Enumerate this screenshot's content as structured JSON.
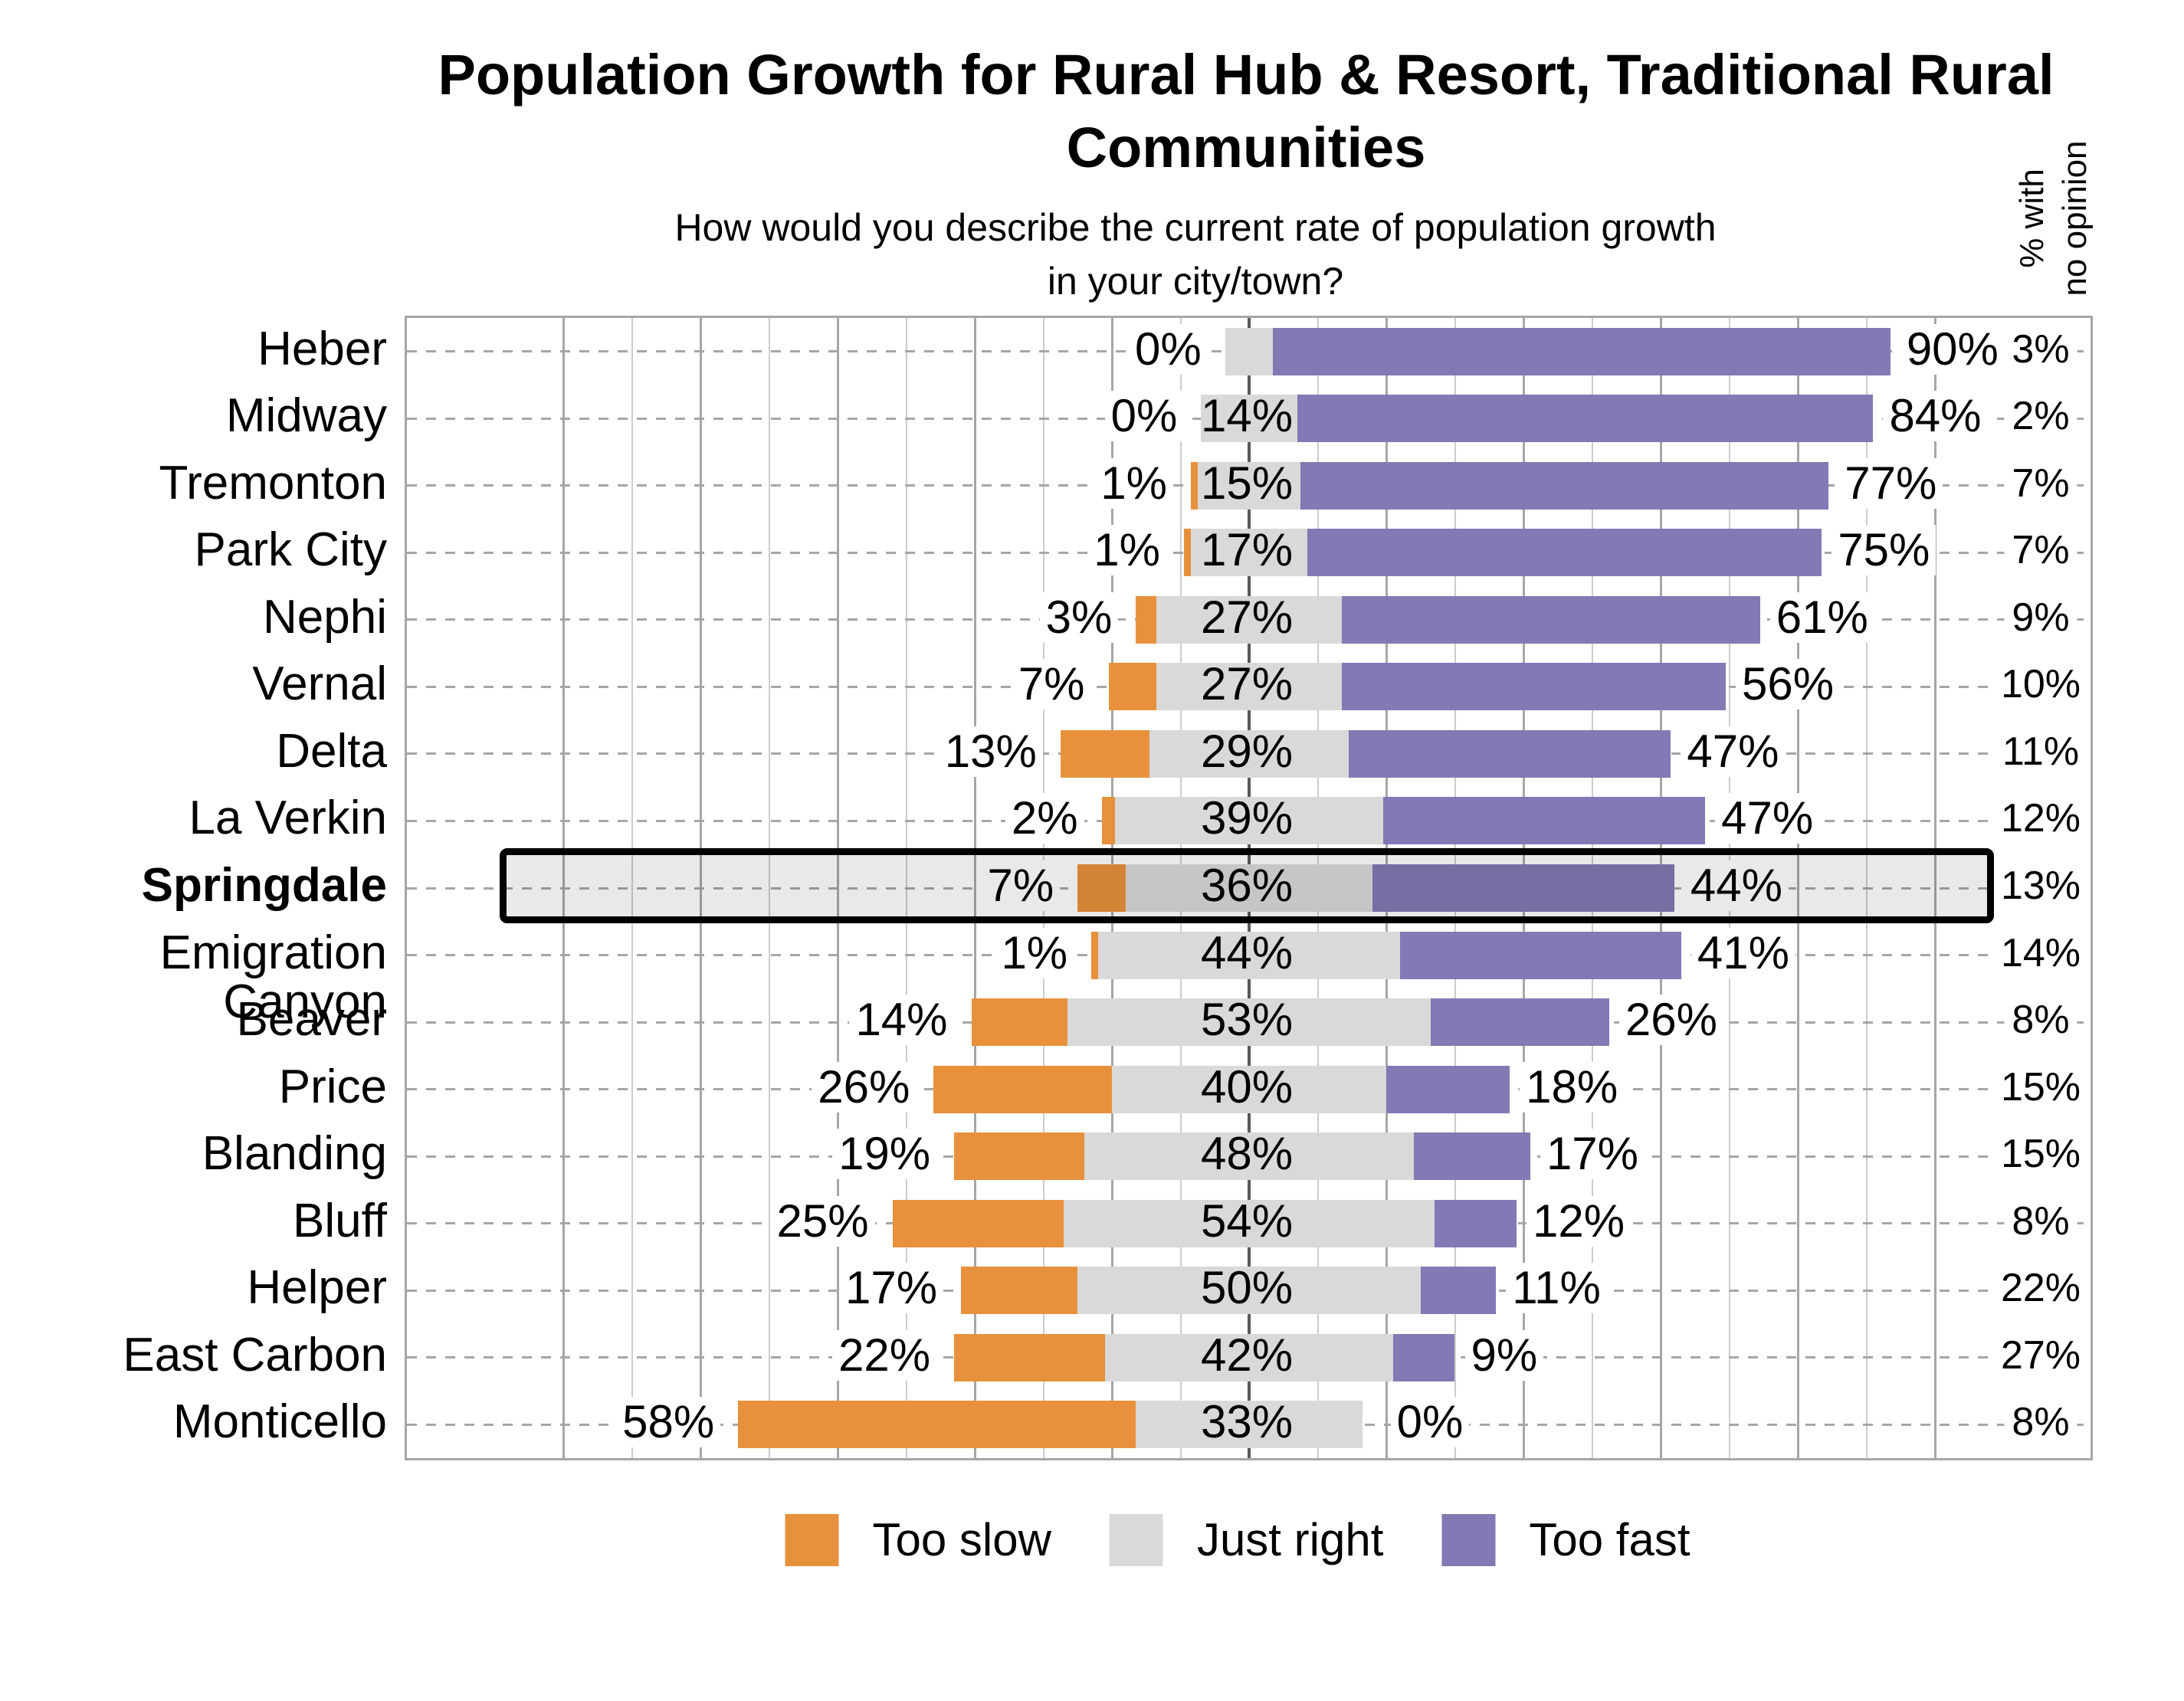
{
  "title": {
    "line1": "Population Growth for Rural Hub & Resort, Traditional Rural",
    "line2": "Communities"
  },
  "subtitle": {
    "line1": "How would you describe the current rate of population growth",
    "line2": "in your city/town?"
  },
  "no_opinion_header": {
    "line1": "% with",
    "line2": "no opinion"
  },
  "legend": {
    "items": [
      {
        "label": "Too slow",
        "color_key": "too_slow"
      },
      {
        "label": "Just right",
        "color_key": "just_right"
      },
      {
        "label": "Too fast",
        "color_key": "too_fast"
      }
    ]
  },
  "colors": {
    "too_slow": "#E8913C",
    "just_right": "#D9D9D9",
    "too_fast": "#8379B4",
    "grid_major": "#A6A6A6",
    "grid_minor": "#CCCCCC",
    "axis_center": "#595959",
    "row_dash": "#A6A6A6",
    "plot_border": "#A6A6A6",
    "highlight_border": "#000000"
  },
  "chart_data": {
    "type": "bar",
    "subtype": "horizontal-diverging-stacked",
    "title": "Population Growth for Rural Hub & Resort, Traditional Rural Communities",
    "question": "How would you describe the current rate of population growth in your city/town?",
    "unit": "%",
    "series_names": [
      "Too slow",
      "Just right",
      "Too fast"
    ],
    "extra_column": "% with no opinion",
    "axis": {
      "center_value": 0,
      "gridline_step_pct": 10,
      "major_step_pct": 20,
      "gridline_range_pct": [
        -100,
        100
      ],
      "xlim_pct": [
        -123,
        123
      ],
      "grid": true
    },
    "legend_position": "bottom",
    "rows": [
      {
        "city": "Heber",
        "too_slow": 0,
        "just_right": 7,
        "too_fast": 90,
        "no_opinion": 3,
        "highlight": false,
        "just_label_shown": false
      },
      {
        "city": "Midway",
        "too_slow": 0,
        "just_right": 14,
        "too_fast": 84,
        "no_opinion": 2,
        "highlight": false,
        "just_label_shown": true
      },
      {
        "city": "Tremonton",
        "too_slow": 1,
        "just_right": 15,
        "too_fast": 77,
        "no_opinion": 7,
        "highlight": false,
        "just_label_shown": true
      },
      {
        "city": "Park City",
        "too_slow": 1,
        "just_right": 17,
        "too_fast": 75,
        "no_opinion": 7,
        "highlight": false,
        "just_label_shown": true
      },
      {
        "city": "Nephi",
        "too_slow": 3,
        "just_right": 27,
        "too_fast": 61,
        "no_opinion": 9,
        "highlight": false,
        "just_label_shown": true
      },
      {
        "city": "Vernal",
        "too_slow": 7,
        "just_right": 27,
        "too_fast": 56,
        "no_opinion": 10,
        "highlight": false,
        "just_label_shown": true
      },
      {
        "city": "Delta",
        "too_slow": 13,
        "just_right": 29,
        "too_fast": 47,
        "no_opinion": 11,
        "highlight": false,
        "just_label_shown": true
      },
      {
        "city": "La Verkin",
        "too_slow": 2,
        "just_right": 39,
        "too_fast": 47,
        "no_opinion": 12,
        "highlight": false,
        "just_label_shown": true
      },
      {
        "city": "Springdale",
        "too_slow": 7,
        "just_right": 36,
        "too_fast": 44,
        "no_opinion": 13,
        "highlight": true,
        "just_label_shown": true
      },
      {
        "city": "Emigration Canyon",
        "too_slow": 1,
        "just_right": 44,
        "too_fast": 41,
        "no_opinion": 14,
        "highlight": false,
        "just_label_shown": true
      },
      {
        "city": "Beaver",
        "too_slow": 14,
        "just_right": 53,
        "too_fast": 26,
        "no_opinion": 8,
        "highlight": false,
        "just_label_shown": true
      },
      {
        "city": "Price",
        "too_slow": 26,
        "just_right": 40,
        "too_fast": 18,
        "no_opinion": 15,
        "highlight": false,
        "just_label_shown": true
      },
      {
        "city": "Blanding",
        "too_slow": 19,
        "just_right": 48,
        "too_fast": 17,
        "no_opinion": 15,
        "highlight": false,
        "just_label_shown": true
      },
      {
        "city": "Bluff",
        "too_slow": 25,
        "just_right": 54,
        "too_fast": 12,
        "no_opinion": 8,
        "highlight": false,
        "just_label_shown": true
      },
      {
        "city": "Helper",
        "too_slow": 17,
        "just_right": 50,
        "too_fast": 11,
        "no_opinion": 22,
        "highlight": false,
        "just_label_shown": true
      },
      {
        "city": "East Carbon",
        "too_slow": 22,
        "just_right": 42,
        "too_fast": 9,
        "no_opinion": 27,
        "highlight": false,
        "just_label_shown": true
      },
      {
        "city": "Monticello",
        "too_slow": 58,
        "just_right": 33,
        "too_fast": 0,
        "no_opinion": 8,
        "highlight": false,
        "just_label_shown": true
      }
    ]
  }
}
